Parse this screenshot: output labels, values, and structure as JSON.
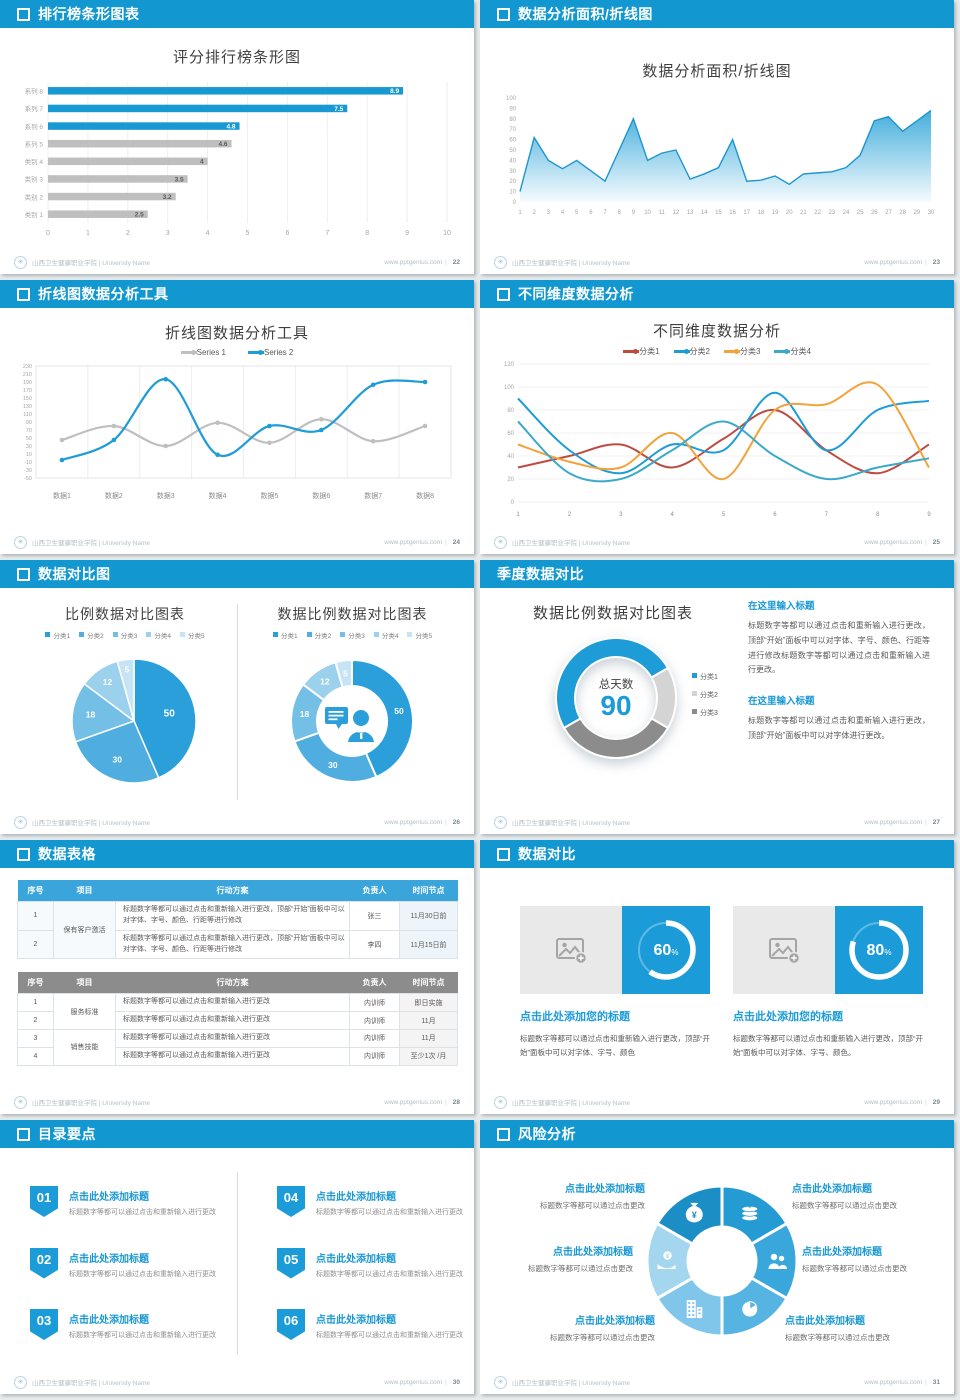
{
  "footer": {
    "school": "山西卫生健康职业学院 | University Name",
    "site": "www.pptgenius.com"
  },
  "slides": {
    "s1": {
      "header": "排行榜条形图表",
      "page": "22",
      "chart_title": "评分排行榜条形图"
    },
    "s2": {
      "header": "数据分析面积/折线图",
      "page": "23",
      "chart_title": "数据分析面积/折线图"
    },
    "s3": {
      "header": "折线图数据分析工具",
      "page": "24",
      "chart_title": "折线图数据分析工具"
    },
    "s4": {
      "header": "不同维度数据分析",
      "page": "25",
      "chart_title": "不同维度数据分析"
    },
    "s5": {
      "header": "数据对比图",
      "page": "26",
      "left_title": "比例数据对比图表",
      "right_title": "数据比例数据对比图表"
    },
    "s6": {
      "header": "季度数据对比",
      "page": "27",
      "chart_title": "数据比例数据对比图表",
      "center_label": "总天数",
      "center_value": "90",
      "blocks": [
        {
          "title": "在这里输入标题",
          "body": "标题数字等都可以通过点击和重新输入进行更改，顶部“开始”面板中可以对字体、字号、颜色、行距等进行修改标题数字等都可以通过点击和重新输入进行更改。"
        },
        {
          "title": "在这里输入标题",
          "body": "标题数字等都可以通过点击和重新输入进行更改，顶部“开始”面板中可以对字体进行更改。"
        }
      ]
    },
    "s7": {
      "header": "数据表格",
      "page": "28",
      "tables": [
        {
          "style": "blue",
          "columns": [
            "序号",
            "项目",
            "行动方案",
            "负责人",
            "时间节点"
          ],
          "groups": [
            {
              "project": "保有客户激活",
              "rows": [
                {
                  "no": "1",
                  "plan": "标题数字等都可以通过点击和重新输入进行更改，顶部“开始”面板中可以对字体、字号、颜色、行距等进行修改",
                  "owner": "张三",
                  "time": "11月30日前"
                },
                {
                  "no": "2",
                  "plan": "标题数字等都可以通过点击和重新输入进行更改，顶部“开始”面板中可以对字体、字号、颜色、行距等进行修改",
                  "owner": "李四",
                  "time": "11月15日前"
                }
              ]
            }
          ]
        },
        {
          "style": "gray",
          "columns": [
            "序号",
            "项目",
            "行动方案",
            "负责人",
            "时间节点"
          ],
          "groups": [
            {
              "project": "服务标准",
              "rows": [
                {
                  "no": "1",
                  "plan": "标题数字等都可以通过点击和重新输入进行更改",
                  "owner": "内训师",
                  "time": "即日实施"
                },
                {
                  "no": "2",
                  "plan": "标题数字等都可以通过点击和重新输入进行更改",
                  "owner": "内训师",
                  "time": "11月"
                }
              ]
            },
            {
              "project": "销售技能",
              "rows": [
                {
                  "no": "3",
                  "plan": "标题数字等都可以通过点击和重新输入进行更改",
                  "owner": "内训师",
                  "time": "11月"
                },
                {
                  "no": "4",
                  "plan": "标题数字等都可以通过点击和重新输入进行更改",
                  "owner": "内训师",
                  "time": "至少1次 /月"
                }
              ]
            }
          ]
        }
      ]
    },
    "s8": {
      "header": "数据对比",
      "page": "29",
      "cards": [
        {
          "percent": "60",
          "unit": "%",
          "title": "点击此处添加您的标题",
          "body": "标题数字等都可以通过点击和重新输入进行更改，顶部“开始”面板中可以对字体、字号、颜色"
        },
        {
          "percent": "80",
          "unit": "%",
          "title": "点击此处添加您的标题",
          "body": "标题数字等都可以通过点击和重新输入进行更改，顶部“开始”面板中可以对字体、字号、颜色。"
        }
      ]
    },
    "s9": {
      "header": "目录要点",
      "page": "30",
      "items": [
        {
          "num": "01",
          "title": "点击此处添加标题",
          "body": "标题数字等都可以通过点击和重新输入进行更改"
        },
        {
          "num": "02",
          "title": "点击此处添加标题",
          "body": "标题数字等都可以通过点击和重新输入进行更改"
        },
        {
          "num": "03",
          "title": "点击此处添加标题",
          "body": "标题数字等都可以通过点击和重新输入进行更改"
        },
        {
          "num": "04",
          "title": "点击此处添加标题",
          "body": "标题数字等都可以通过点击和重新输入进行更改"
        },
        {
          "num": "05",
          "title": "点击此处添加标题",
          "body": "标题数字等都可以通过点击和重新输入进行更改"
        },
        {
          "num": "06",
          "title": "点击此处添加标题",
          "body": "标题数字等都可以通过点击和重新输入进行更改"
        }
      ]
    },
    "s10": {
      "header": "风险分析",
      "page": "31",
      "icons": [
        "money-bag-icon",
        "coins-icon",
        "people-icon",
        "pie-chart-icon",
        "building-icon",
        "hand-coin-icon"
      ],
      "items": [
        {
          "title": "点击此处添加标题",
          "body": "标题数字等都可以通过点击更改"
        },
        {
          "title": "点击此处添加标题",
          "body": "标题数字等都可以通过点击更改"
        },
        {
          "title": "点击此处添加标题",
          "body": "标题数字等都可以通过点击更改"
        },
        {
          "title": "点击此处添加标题",
          "body": "标题数字等都可以通过点击更改"
        },
        {
          "title": "点击此处添加标题",
          "body": "标题数字等都可以通过点击更改"
        },
        {
          "title": "点击此处添加标题",
          "body": "标题数字等都可以通过点击更改"
        }
      ]
    }
  },
  "chart_data": [
    {
      "id": "ranking-bar",
      "type": "bar",
      "orientation": "horizontal",
      "title": "评分排行榜条形图",
      "categories": [
        "系列 8",
        "系列 7",
        "系列 6",
        "系列 5",
        "类别 4",
        "类别 3",
        "类别 2",
        "类别 1"
      ],
      "values": [
        8.9,
        7.5,
        4.8,
        4.6,
        4,
        3.5,
        3.2,
        2.5
      ],
      "highlight": [
        true,
        true,
        true,
        false,
        false,
        false,
        false,
        false
      ],
      "colors": {
        "highlight": "#1899D4",
        "normal": "#BFBFBF"
      },
      "xlim": [
        0,
        10
      ],
      "xticks": [
        0,
        1,
        2,
        3,
        4,
        5,
        6,
        7,
        8,
        9,
        10
      ]
    },
    {
      "id": "area",
      "type": "area",
      "title": "数据分析面积/折线图",
      "x": [
        1,
        2,
        3,
        4,
        5,
        6,
        7,
        8,
        9,
        10,
        11,
        12,
        13,
        14,
        15,
        16,
        17,
        18,
        19,
        20,
        21,
        22,
        23,
        24,
        25,
        26,
        27,
        28,
        29,
        30
      ],
      "values": [
        10,
        62,
        40,
        32,
        40,
        30,
        20,
        50,
        80,
        40,
        47,
        50,
        22,
        27,
        33,
        60,
        20,
        21,
        25,
        17,
        27,
        28,
        29,
        33,
        45,
        78,
        82,
        68,
        78,
        88
      ],
      "ylim": [
        0,
        100
      ],
      "ytick_step": 10,
      "line_color": "#1D96CF",
      "fill_top": "#44AEDC",
      "fill_bottom": "#F5FBFE"
    },
    {
      "id": "two-line",
      "type": "line",
      "smooth": true,
      "title": "折线图数据分析工具",
      "categories": [
        "数据1",
        "数据2",
        "数据3",
        "数据4",
        "数据5",
        "数据6",
        "数据7",
        "数据8"
      ],
      "ylim": [
        -50,
        230
      ],
      "ytick_step": 20,
      "series": [
        {
          "name": "Series 1",
          "color": "#BFBFBF",
          "values": [
            45,
            80,
            30,
            88,
            38,
            97,
            42,
            80
          ]
        },
        {
          "name": "Series 2",
          "color": "#1E9CD7",
          "values": [
            -5,
            45,
            197,
            8,
            80,
            70,
            183,
            190
          ]
        }
      ]
    },
    {
      "id": "four-line",
      "type": "line",
      "smooth": true,
      "title": "不同维度数据分析",
      "x": [
        1,
        2,
        3,
        4,
        5,
        6,
        7,
        8,
        9
      ],
      "ylim": [
        0,
        120
      ],
      "ytick_step": 20,
      "series": [
        {
          "name": "分类1",
          "color": "#BE4B40",
          "values": [
            30,
            40,
            50,
            30,
            55,
            80,
            45,
            25,
            50
          ]
        },
        {
          "name": "分类2",
          "color": "#1F9CD7",
          "values": [
            90,
            45,
            25,
            50,
            45,
            95,
            45,
            80,
            88
          ]
        },
        {
          "name": "分类3",
          "color": "#F2A33A",
          "values": [
            50,
            35,
            30,
            60,
            20,
            80,
            85,
            102,
            30
          ]
        },
        {
          "name": "分类4",
          "color": "#3BAAC8",
          "values": [
            70,
            25,
            20,
            45,
            70,
            40,
            20,
            30,
            38
          ]
        }
      ]
    },
    {
      "id": "pie",
      "type": "pie",
      "title": "比例数据对比图表",
      "labels": [
        "分类1",
        "分类2",
        "分类3",
        "分类4",
        "分类5"
      ],
      "values": [
        50,
        30,
        18,
        12,
        5
      ],
      "colors": [
        "#2B9FD9",
        "#4FAEDF",
        "#74BFE6",
        "#9CD1ED",
        "#C6E4F5"
      ]
    },
    {
      "id": "donut",
      "type": "donut",
      "title": "数据比例数据对比图表",
      "labels": [
        "分类1",
        "分类2",
        "分类3",
        "分类4",
        "分类5"
      ],
      "values": [
        50,
        30,
        18,
        12,
        5
      ],
      "colors": [
        "#2B9FD9",
        "#4FAEDF",
        "#74BFE6",
        "#9CD1ED",
        "#C6E4F5"
      ],
      "center_icon": "person-chat-icon"
    },
    {
      "id": "quarter-donut",
      "type": "donut",
      "title": "数据比例数据对比图表",
      "labels": [
        "分类1",
        "分类2",
        "分类3"
      ],
      "values": [
        45,
        15,
        30
      ],
      "colors": [
        "#1E9CD7",
        "#D4D4D4",
        "#8C8C8C"
      ],
      "center_label": "总天数",
      "center_value": "90"
    },
    {
      "id": "progress",
      "type": "progress-ring",
      "values": [
        60,
        80
      ]
    }
  ]
}
